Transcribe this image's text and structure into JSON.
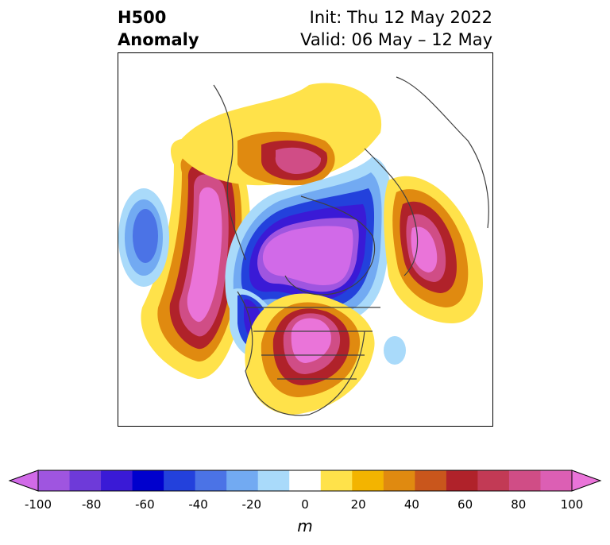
{
  "header": {
    "title_line1": "H500",
    "title_line2": "Anomaly",
    "init_label": "Init: Thu 12 May 2022",
    "valid_label": "Valid: 06 May – 12 May"
  },
  "colorbar": {
    "ticks": [
      "-100",
      "-80",
      "-60",
      "-40",
      "-20",
      "0",
      "20",
      "40",
      "60",
      "80",
      "100"
    ],
    "unit": "m",
    "colors": [
      "#d16ae8",
      "#9f55e0",
      "#6e3ad9",
      "#3a1ad6",
      "#0000cd",
      "#2341dc",
      "#4b73e6",
      "#72aaf2",
      "#a9dafa",
      "#ffffff",
      "#ffe24a",
      "#f3b400",
      "#e08a10",
      "#c9561c",
      "#b0222a",
      "#c23a55",
      "#d04d86",
      "#dc5fb4",
      "#ea74d9"
    ]
  },
  "map": {
    "colors": {
      "neg100": "#d16ae8",
      "neg80": "#9f55e0",
      "neg60": "#3a1ad6",
      "neg40": "#2341dc",
      "neg30": "#4b73e6",
      "neg20": "#72aaf2",
      "neg10": "#a9dafa",
      "pos10": "#ffe24a",
      "pos20": "#f3b400",
      "pos30": "#e08a10",
      "pos40": "#c9561c",
      "pos50": "#b0222a",
      "pos60": "#c23a55",
      "pos70": "#d04d86",
      "pos90": "#ea74d9",
      "coast": "#404040"
    }
  }
}
